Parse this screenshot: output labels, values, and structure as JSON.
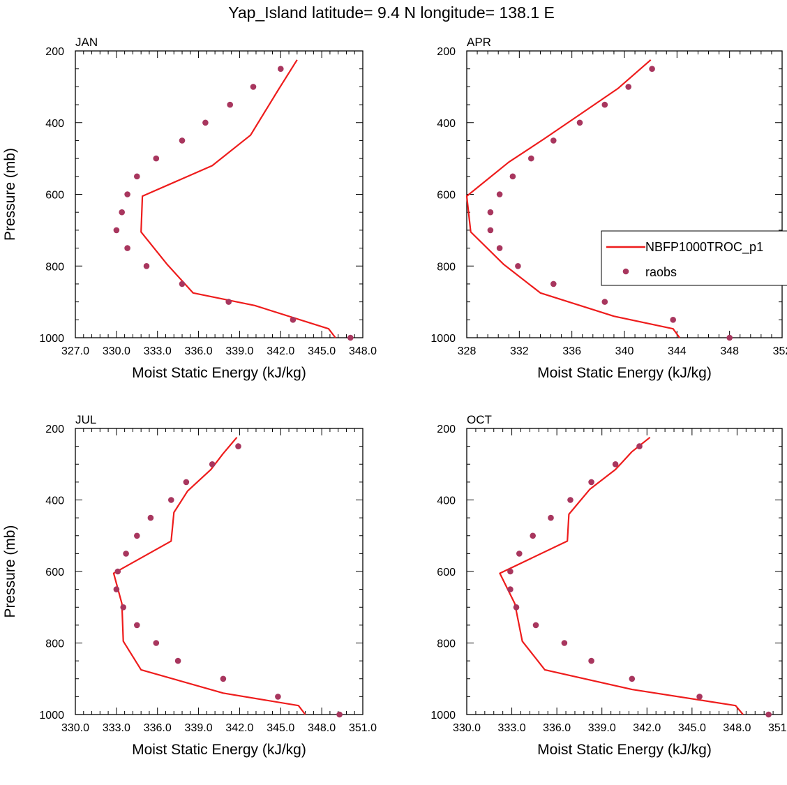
{
  "figure_title": "Yap_Island  latitude= 9.4 N longitude= 138.1 E",
  "legend": {
    "model_label": "NBFP1000TROC_p1",
    "obs_label": "raobs"
  },
  "colors": {
    "model": "#ee1c1c",
    "obs": "#a8365e",
    "axis": "#000000"
  },
  "chart_data": [
    {
      "type": "line",
      "panel": "JAN",
      "xlabel": "Moist Static Energy (kJ/kg)",
      "ylabel": "Pressure (mb)",
      "xlim": [
        327,
        348
      ],
      "ylim": [
        200,
        1000
      ],
      "y_reversed": true,
      "xticks": [
        "327.0",
        "330.0",
        "333.0",
        "336.0",
        "339.0",
        "342.0",
        "345.0",
        "348.0"
      ],
      "yticks": [
        "200",
        "400",
        "600",
        "800",
        "1000"
      ],
      "model": {
        "x": [
          343.2,
          341.8,
          339.8,
          337.0,
          331.9,
          331.8,
          333.7,
          335.6,
          340.1,
          345.5,
          346.0
        ],
        "y": [
          225,
          310,
          435,
          520,
          605,
          705,
          795,
          875,
          910,
          975,
          1000
        ]
      },
      "obs": {
        "x": [
          342.0,
          340.0,
          338.3,
          336.5,
          334.8,
          332.9,
          331.5,
          330.8,
          330.4,
          330.0,
          330.8,
          332.2,
          334.8,
          338.2,
          342.9,
          347.1
        ],
        "y": [
          250,
          300,
          350,
          400,
          450,
          500,
          550,
          600,
          650,
          700,
          750,
          800,
          850,
          900,
          950,
          1000
        ]
      }
    },
    {
      "type": "line",
      "panel": "APR",
      "xlabel": "Moist Static Energy (kJ/kg)",
      "ylabel": "",
      "xlim": [
        328,
        352
      ],
      "ylim": [
        200,
        1000
      ],
      "y_reversed": true,
      "xticks": [
        "328",
        "332",
        "336",
        "340",
        "344",
        "348",
        "352"
      ],
      "yticks": [
        "200",
        "400",
        "600",
        "800",
        "1000"
      ],
      "model": {
        "x": [
          342.0,
          339.5,
          336.5,
          333.9,
          331.2,
          328.0,
          328.3,
          330.8,
          333.6,
          339.2,
          343.7,
          344.2
        ],
        "y": [
          225,
          305,
          380,
          445,
          510,
          605,
          705,
          795,
          875,
          940,
          975,
          1000
        ]
      },
      "obs": {
        "x": [
          342.1,
          340.3,
          338.5,
          336.6,
          334.6,
          332.9,
          331.5,
          330.5,
          329.8,
          329.8,
          330.5,
          331.9,
          334.6,
          338.5,
          343.7,
          348.0
        ],
        "y": [
          250,
          300,
          350,
          400,
          450,
          500,
          550,
          600,
          650,
          700,
          750,
          800,
          850,
          900,
          950,
          1000
        ]
      }
    },
    {
      "type": "line",
      "panel": "JUL",
      "xlabel": "Moist Static Energy (kJ/kg)",
      "ylabel": "Pressure (mb)",
      "xlim": [
        330,
        351
      ],
      "ylim": [
        200,
        1000
      ],
      "y_reversed": true,
      "xticks": [
        "330.0",
        "333.0",
        "336.0",
        "339.0",
        "342.0",
        "345.0",
        "348.0",
        "351.0"
      ],
      "yticks": [
        "200",
        "400",
        "600",
        "800",
        "1000"
      ],
      "model": {
        "x": [
          341.8,
          340.8,
          339.9,
          338.2,
          337.2,
          337.0,
          332.8,
          333.4,
          333.5,
          334.8,
          340.8,
          346.3,
          346.8
        ],
        "y": [
          225,
          270,
          315,
          375,
          435,
          515,
          605,
          690,
          795,
          875,
          940,
          975,
          1000
        ]
      },
      "obs": {
        "x": [
          341.9,
          340.0,
          338.1,
          337.0,
          335.5,
          334.5,
          333.7,
          333.1,
          333.0,
          333.5,
          334.5,
          335.9,
          337.5,
          340.8,
          344.8,
          349.3
        ],
        "y": [
          250,
          300,
          350,
          400,
          450,
          500,
          550,
          600,
          650,
          700,
          750,
          800,
          850,
          900,
          950,
          1000
        ]
      }
    },
    {
      "type": "line",
      "panel": "OCT",
      "xlabel": "Moist Static Energy (kJ/kg)",
      "ylabel": "",
      "xlim": [
        330,
        351
      ],
      "ylim": [
        200,
        1000
      ],
      "y_reversed": true,
      "xticks": [
        "330.0",
        "333.0",
        "336.0",
        "339.0",
        "342.0",
        "345.0",
        "348.0",
        "351.0"
      ],
      "yticks": [
        "200",
        "400",
        "600",
        "800",
        "1000"
      ],
      "model": {
        "x": [
          342.2,
          341.0,
          339.9,
          338.2,
          336.8,
          336.7,
          332.2,
          333.2,
          333.7,
          335.2,
          341.0,
          347.9,
          348.4
        ],
        "y": [
          225,
          265,
          315,
          370,
          440,
          515,
          605,
          690,
          795,
          875,
          930,
          975,
          1000
        ]
      },
      "obs": {
        "x": [
          341.5,
          339.9,
          338.3,
          336.9,
          335.6,
          334.4,
          333.5,
          332.9,
          332.9,
          333.3,
          334.6,
          336.5,
          338.3,
          341.0,
          345.5,
          350.1
        ],
        "y": [
          250,
          300,
          350,
          400,
          450,
          500,
          550,
          600,
          650,
          700,
          750,
          800,
          850,
          900,
          950,
          1000
        ]
      }
    }
  ]
}
